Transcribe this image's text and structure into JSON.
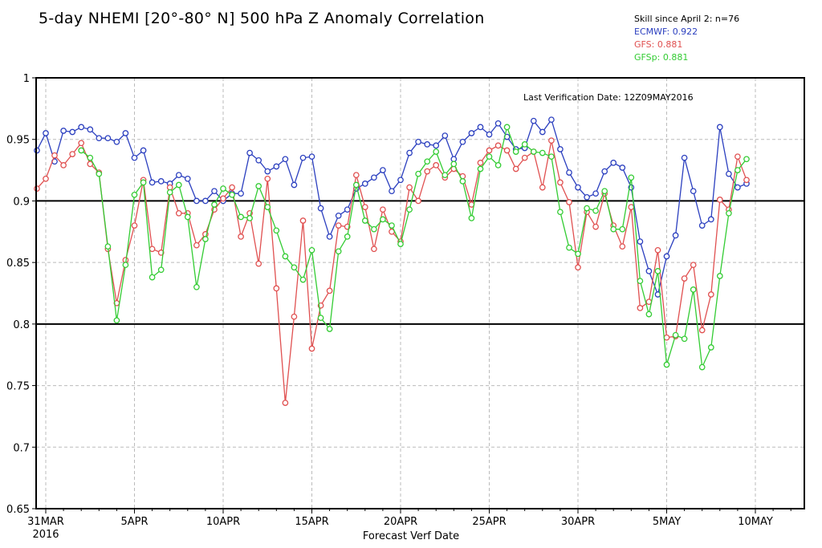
{
  "chart_data": {
    "type": "line",
    "title": "5-day NHEMI [20°-80° N] 500 hPa Z Anomaly Correlation",
    "xlabel": "Forecast Verf Date",
    "ylabel": "",
    "ylim": [
      0.65,
      1.0
    ],
    "yticks": [
      "0.65",
      "0.7",
      "0.75",
      "0.8",
      "0.85",
      "0.9",
      "0.95",
      "1"
    ],
    "xticks": [
      {
        "day": 0,
        "label": "31MAR",
        "label2": "2016"
      },
      {
        "day": 5,
        "label": "5APR"
      },
      {
        "day": 10,
        "label": "10APR"
      },
      {
        "day": 15,
        "label": "15APR"
      },
      {
        "day": 20,
        "label": "20APR"
      },
      {
        "day": 25,
        "label": "25APR"
      },
      {
        "day": 30,
        "label": "30APR"
      },
      {
        "day": 35,
        "label": "5MAY"
      },
      {
        "day": 40,
        "label": "10MAY"
      }
    ],
    "reference_lines": [
      0.9,
      0.8
    ],
    "annotation": "Last Verification Date: 12Z09MAY2016",
    "grid": true,
    "legend_header": "Skill since April 2: n=76",
    "legend_placement": "top-right",
    "x_start_day": -0.5,
    "x_step_days": 0.5,
    "series": [
      {
        "name": "ECMWF",
        "score": "0.922",
        "color": "#2b3fbf",
        "values": [
          0.941,
          0.955,
          0.932,
          0.957,
          0.956,
          0.96,
          0.958,
          0.951,
          0.951,
          0.948,
          0.955,
          0.935,
          0.941,
          0.915,
          0.916,
          0.914,
          0.921,
          0.918,
          0.9,
          0.9,
          0.908,
          0.9,
          0.906,
          0.906,
          0.939,
          0.933,
          0.924,
          0.928,
          0.934,
          0.913,
          0.935,
          0.936,
          0.894,
          0.871,
          0.888,
          0.893,
          0.91,
          0.914,
          0.919,
          0.925,
          0.908,
          0.917,
          0.939,
          0.948,
          0.946,
          0.945,
          0.953,
          0.934,
          0.948,
          0.955,
          0.96,
          0.954,
          0.963,
          0.952,
          0.942,
          0.943,
          0.965,
          0.956,
          0.966,
          0.942,
          0.923,
          0.911,
          0.903,
          0.906,
          0.924,
          0.931,
          0.927,
          0.911,
          0.867,
          0.843,
          0.824,
          0.855,
          0.872,
          0.935,
          0.908,
          0.88,
          0.885,
          0.96,
          0.922,
          0.911,
          0.914
        ]
      },
      {
        "name": "GFS",
        "score": "0.881",
        "color": "#e05050",
        "values": [
          0.91,
          0.918,
          0.937,
          0.929,
          0.938,
          0.947,
          0.93,
          0.923,
          0.861,
          0.817,
          0.852,
          0.88,
          0.917,
          0.861,
          0.858,
          0.911,
          0.89,
          0.89,
          0.864,
          0.873,
          0.893,
          0.902,
          0.911,
          0.871,
          0.89,
          0.849,
          0.918,
          0.829,
          0.736,
          0.806,
          0.884,
          0.78,
          0.815,
          0.827,
          0.88,
          0.879,
          0.921,
          0.895,
          0.861,
          0.893,
          0.875,
          0.867,
          0.911,
          0.9,
          0.924,
          0.929,
          0.919,
          0.926,
          0.92,
          0.897,
          0.931,
          0.941,
          0.945,
          0.941,
          0.926,
          0.935,
          0.94,
          0.911,
          0.949,
          0.915,
          0.899,
          0.846,
          0.891,
          0.879,
          0.906,
          0.88,
          0.863,
          0.895,
          0.813,
          0.818,
          0.86,
          0.789,
          0.79,
          0.837,
          0.848,
          0.795,
          0.824,
          0.901,
          0.893,
          0.936,
          0.917
        ]
      },
      {
        "name": "GFSp",
        "score": "0.881",
        "color": "#33cc33",
        "values": [
          null,
          null,
          null,
          null,
          null,
          0.941,
          0.935,
          0.922,
          0.863,
          0.803,
          0.848,
          0.905,
          0.915,
          0.838,
          0.844,
          0.907,
          0.913,
          0.887,
          0.83,
          0.869,
          0.897,
          0.91,
          0.905,
          0.887,
          0.886,
          0.912,
          0.895,
          0.876,
          0.855,
          0.846,
          0.836,
          0.86,
          0.805,
          0.796,
          0.859,
          0.871,
          0.913,
          0.884,
          0.877,
          0.885,
          0.88,
          0.865,
          0.893,
          0.922,
          0.932,
          0.94,
          0.921,
          0.93,
          0.916,
          0.886,
          0.926,
          0.936,
          0.929,
          0.96,
          0.94,
          0.946,
          0.94,
          0.939,
          0.936,
          0.891,
          0.862,
          0.857,
          0.894,
          0.892,
          0.908,
          0.877,
          0.877,
          0.919,
          0.835,
          0.808,
          0.843,
          0.767,
          0.791,
          0.788,
          0.828,
          0.765,
          0.781,
          0.839,
          0.89,
          0.925,
          0.934
        ]
      }
    ]
  }
}
